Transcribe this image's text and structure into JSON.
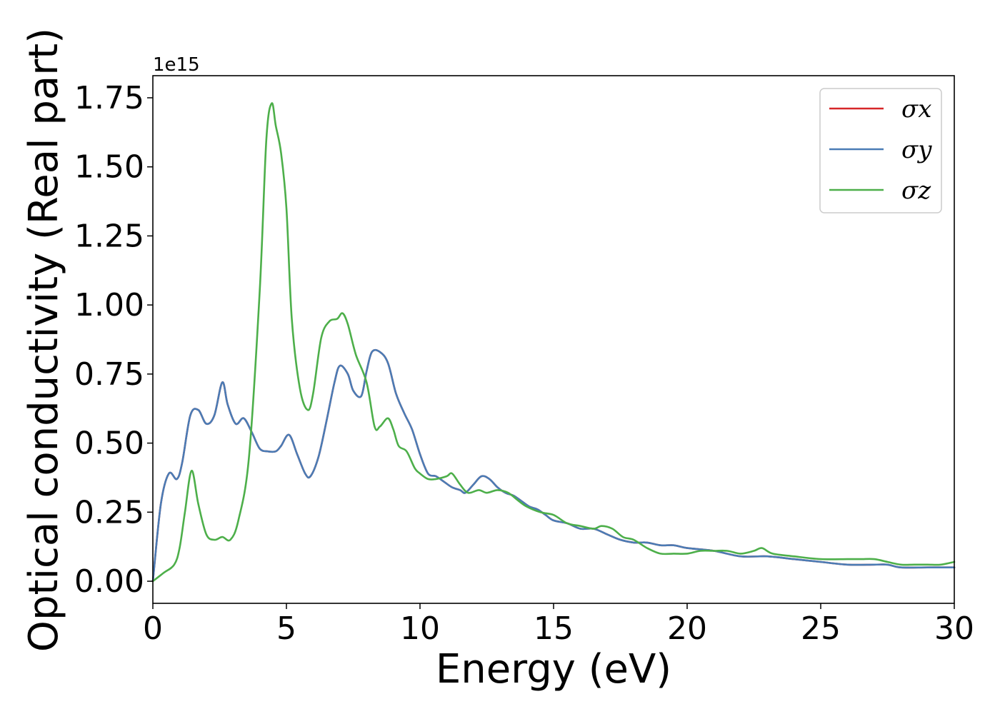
{
  "chart_data": {
    "type": "line",
    "title": "",
    "xlabel": "Energy (eV)",
    "ylabel": "Optical conductivity (Real part)",
    "offset_text": "1e15",
    "xlim": [
      0,
      30
    ],
    "ylim": [
      -0.08,
      1.83
    ],
    "xticks": [
      0,
      5,
      10,
      15,
      20,
      25,
      30
    ],
    "xtick_labels": [
      "0",
      "5",
      "10",
      "15",
      "20",
      "25",
      "30"
    ],
    "yticks": [
      0.0,
      0.25,
      0.5,
      0.75,
      1.0,
      1.25,
      1.5,
      1.75
    ],
    "ytick_labels": [
      "0.00",
      "0.25",
      "0.50",
      "0.75",
      "1.00",
      "1.25",
      "1.50",
      "1.75"
    ],
    "grid": false,
    "legend_position": "top-right",
    "series": [
      {
        "name": "σx",
        "color": "#d62728",
        "x": [
          0,
          0.3,
          0.6,
          0.9,
          1.1,
          1.4,
          1.7,
          2.0,
          2.3,
          2.6,
          2.8,
          3.1,
          3.4,
          3.7,
          4.0,
          4.3,
          4.6,
          4.8,
          5.1,
          5.4,
          5.7,
          5.9,
          6.2,
          6.5,
          6.8,
          7.0,
          7.3,
          7.5,
          7.8,
          8.0,
          8.2,
          8.5,
          8.8,
          9.1,
          9.4,
          9.7,
          10.0,
          10.3,
          10.6,
          10.9,
          11.2,
          11.5,
          11.7,
          12.0,
          12.3,
          12.6,
          12.9,
          13.2,
          13.5,
          13.8,
          14.1,
          14.4,
          14.7,
          15.0,
          15.5,
          16.0,
          16.5,
          17.0,
          17.5,
          18.0,
          18.5,
          19.0,
          19.5,
          20.0,
          21.0,
          22.0,
          23.0,
          24.0,
          25.0,
          26.0,
          27.0,
          27.5,
          28.0,
          29.0,
          30.0
        ],
        "values": [
          0.0,
          0.28,
          0.39,
          0.37,
          0.43,
          0.6,
          0.62,
          0.57,
          0.6,
          0.72,
          0.64,
          0.57,
          0.59,
          0.54,
          0.48,
          0.47,
          0.47,
          0.49,
          0.53,
          0.46,
          0.39,
          0.38,
          0.45,
          0.58,
          0.72,
          0.78,
          0.75,
          0.69,
          0.67,
          0.76,
          0.83,
          0.83,
          0.79,
          0.68,
          0.61,
          0.55,
          0.46,
          0.39,
          0.38,
          0.36,
          0.34,
          0.33,
          0.32,
          0.35,
          0.38,
          0.37,
          0.34,
          0.32,
          0.31,
          0.29,
          0.27,
          0.26,
          0.24,
          0.22,
          0.21,
          0.19,
          0.19,
          0.17,
          0.15,
          0.14,
          0.14,
          0.13,
          0.13,
          0.12,
          0.11,
          0.09,
          0.09,
          0.08,
          0.07,
          0.06,
          0.06,
          0.06,
          0.05,
          0.05,
          0.05
        ]
      },
      {
        "name": "σy",
        "color": "#4a7cb5",
        "x": [
          0,
          0.3,
          0.6,
          0.9,
          1.1,
          1.4,
          1.7,
          2.0,
          2.3,
          2.6,
          2.8,
          3.1,
          3.4,
          3.7,
          4.0,
          4.3,
          4.6,
          4.8,
          5.1,
          5.4,
          5.7,
          5.9,
          6.2,
          6.5,
          6.8,
          7.0,
          7.3,
          7.5,
          7.8,
          8.0,
          8.2,
          8.5,
          8.8,
          9.1,
          9.4,
          9.7,
          10.0,
          10.3,
          10.6,
          10.9,
          11.2,
          11.5,
          11.7,
          12.0,
          12.3,
          12.6,
          12.9,
          13.2,
          13.5,
          13.8,
          14.1,
          14.4,
          14.7,
          15.0,
          15.5,
          16.0,
          16.5,
          17.0,
          17.5,
          18.0,
          18.5,
          19.0,
          19.5,
          20.0,
          21.0,
          22.0,
          23.0,
          24.0,
          25.0,
          26.0,
          27.0,
          27.5,
          28.0,
          29.0,
          30.0
        ],
        "values": [
          0.0,
          0.28,
          0.39,
          0.37,
          0.43,
          0.6,
          0.62,
          0.57,
          0.6,
          0.72,
          0.64,
          0.57,
          0.59,
          0.54,
          0.48,
          0.47,
          0.47,
          0.49,
          0.53,
          0.46,
          0.39,
          0.38,
          0.45,
          0.58,
          0.72,
          0.78,
          0.75,
          0.69,
          0.67,
          0.76,
          0.83,
          0.83,
          0.79,
          0.68,
          0.61,
          0.55,
          0.46,
          0.39,
          0.38,
          0.36,
          0.34,
          0.33,
          0.32,
          0.35,
          0.38,
          0.37,
          0.34,
          0.32,
          0.31,
          0.29,
          0.27,
          0.26,
          0.24,
          0.22,
          0.21,
          0.19,
          0.19,
          0.17,
          0.15,
          0.14,
          0.14,
          0.13,
          0.13,
          0.12,
          0.11,
          0.09,
          0.09,
          0.08,
          0.07,
          0.06,
          0.06,
          0.06,
          0.05,
          0.05,
          0.05
        ]
      },
      {
        "name": "σz",
        "color": "#4daf4a",
        "x": [
          0,
          0.4,
          0.8,
          1.0,
          1.2,
          1.45,
          1.7,
          2.0,
          2.3,
          2.6,
          2.9,
          3.2,
          3.6,
          4.0,
          4.25,
          4.45,
          4.6,
          4.8,
          5.0,
          5.2,
          5.5,
          5.8,
          6.0,
          6.3,
          6.6,
          6.9,
          7.1,
          7.3,
          7.6,
          8.0,
          8.3,
          8.5,
          8.8,
          9.0,
          9.2,
          9.5,
          9.8,
          10.0,
          10.3,
          10.6,
          11.0,
          11.2,
          11.5,
          11.8,
          12.2,
          12.5,
          12.9,
          13.3,
          13.7,
          14.0,
          14.5,
          15.0,
          15.5,
          16.0,
          16.5,
          16.8,
          17.2,
          17.6,
          18.0,
          18.5,
          19.0,
          19.5,
          20.0,
          20.5,
          21.0,
          21.5,
          22.0,
          22.5,
          22.8,
          23.2,
          24.0,
          25.0,
          26.0,
          26.5,
          27.0,
          27.5,
          28.0,
          28.5,
          29.0,
          29.5,
          30.0
        ],
        "values": [
          0.0,
          0.03,
          0.06,
          0.12,
          0.25,
          0.4,
          0.28,
          0.17,
          0.15,
          0.16,
          0.15,
          0.22,
          0.45,
          1.05,
          1.6,
          1.73,
          1.65,
          1.55,
          1.35,
          0.95,
          0.7,
          0.62,
          0.68,
          0.88,
          0.94,
          0.95,
          0.97,
          0.93,
          0.82,
          0.72,
          0.56,
          0.56,
          0.59,
          0.55,
          0.49,
          0.47,
          0.41,
          0.39,
          0.37,
          0.37,
          0.38,
          0.39,
          0.35,
          0.32,
          0.33,
          0.32,
          0.33,
          0.32,
          0.29,
          0.27,
          0.25,
          0.24,
          0.21,
          0.2,
          0.19,
          0.2,
          0.19,
          0.16,
          0.15,
          0.12,
          0.1,
          0.1,
          0.1,
          0.11,
          0.11,
          0.11,
          0.1,
          0.11,
          0.12,
          0.1,
          0.09,
          0.08,
          0.08,
          0.08,
          0.08,
          0.07,
          0.06,
          0.06,
          0.06,
          0.06,
          0.07
        ]
      }
    ]
  }
}
